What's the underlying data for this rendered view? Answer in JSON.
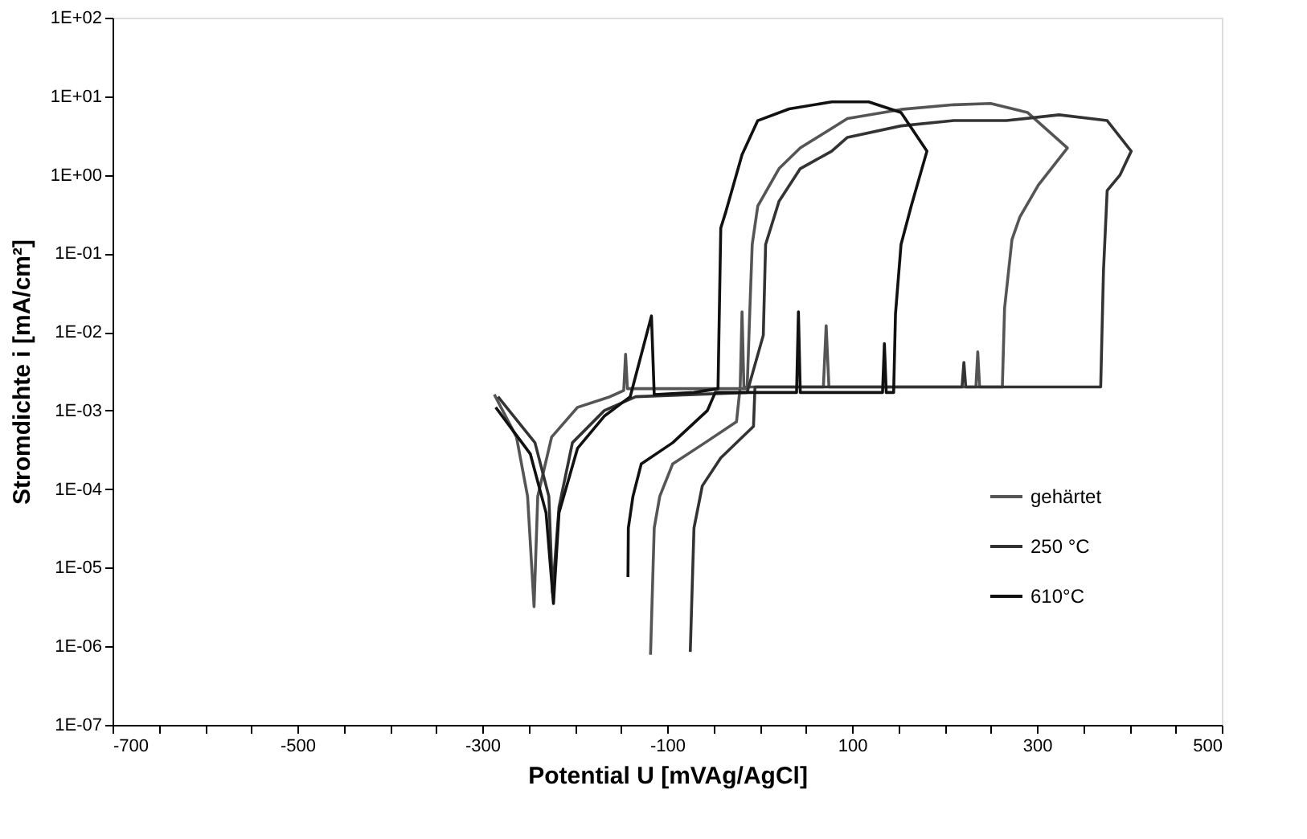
{
  "chart_data": {
    "type": "line",
    "xlabel": "Potential U [mVAg/AgCl]",
    "ylabel": "Stromdichte i [mA/cm²]",
    "log": "y",
    "grid": false,
    "legend": "bottom right",
    "marker": "none",
    "line_style": "solid",
    "xlim": [
      -700,
      500
    ],
    "xticks": [
      {
        "value": -700,
        "label": "-700"
      },
      {
        "value": -650,
        "label": null
      },
      {
        "value": -600,
        "label": null
      },
      {
        "value": -550,
        "label": null
      },
      {
        "value": -500,
        "label": "-500"
      },
      {
        "value": -450,
        "label": null
      },
      {
        "value": -400,
        "label": null
      },
      {
        "value": -350,
        "label": null
      },
      {
        "value": -300,
        "label": "-300"
      },
      {
        "value": -250,
        "label": null
      },
      {
        "value": -200,
        "label": null
      },
      {
        "value": -150,
        "label": null
      },
      {
        "value": -100,
        "label": "-100"
      },
      {
        "value": -50,
        "label": null
      },
      {
        "value": 0,
        "label": null
      },
      {
        "value": 50,
        "label": null
      },
      {
        "value": 100,
        "label": "100"
      },
      {
        "value": 150,
        "label": null
      },
      {
        "value": 200,
        "label": null
      },
      {
        "value": 250,
        "label": null
      },
      {
        "value": 300,
        "label": "300"
      },
      {
        "value": 350,
        "label": null
      },
      {
        "value": 400,
        "label": null
      },
      {
        "value": 450,
        "label": null
      },
      {
        "value": 500,
        "label": "500"
      }
    ],
    "ylim": [
      1e-07,
      100
    ],
    "yticks": [
      {
        "value": 1e-07,
        "label": "1E-07"
      },
      {
        "value": 1e-06,
        "label": "1E-06"
      },
      {
        "value": 1e-05,
        "label": "1E-05"
      },
      {
        "value": 0.0001,
        "label": "1E-04"
      },
      {
        "value": 0.001,
        "label": "1E-03"
      },
      {
        "value": 0.01,
        "label": "1E-02"
      },
      {
        "value": 0.1,
        "label": "1E-01"
      },
      {
        "value": 1,
        "label": "1E+00"
      },
      {
        "value": 10,
        "label": "1E+01"
      },
      {
        "value": 100,
        "label": "1E+02"
      }
    ],
    "series": [
      {
        "name": "gehärtet",
        "color": "#555555",
        "x": [
          -287,
          -263,
          -251,
          -244,
          -240,
          -225,
          -197,
          -162,
          -147,
          -145,
          -143,
          -13.5,
          -10.7,
          -8,
          -2,
          21,
          44,
          78,
          95,
          153,
          210,
          250,
          290,
          333,
          301.5,
          281.5,
          273,
          265,
          262.6,
          238,
          236,
          234,
          75,
          72,
          69,
          -17,
          -19,
          -21,
          -25,
          -59,
          -94,
          -108,
          -114,
          -118
        ],
        "values": [
          0.0016,
          0.00046,
          8.1e-05,
          3.2e-06,
          8.1e-05,
          0.00046,
          0.0011,
          0.0015,
          0.0018,
          0.0052,
          0.0019,
          0.0019,
          0.017,
          0.13,
          0.4,
          1.2,
          2.2,
          3.9,
          5.2,
          6.8,
          7.8,
          8.1,
          6.2,
          2.2,
          0.74,
          0.29,
          0.15,
          0.02,
          0.002,
          0.002,
          0.0056,
          0.002,
          0.002,
          0.012,
          0.002,
          0.002,
          0.018,
          0.002,
          0.00072,
          0.00039,
          0.00021,
          8.1e-05,
          3.2e-05,
          7.8e-07
        ]
      },
      {
        "name": "250 °C",
        "color": "#333333",
        "x": [
          -283,
          -243,
          -228,
          -224,
          -217,
          -202.5,
          -168,
          -134,
          -13.5,
          4,
          6.5,
          21,
          44,
          78,
          95,
          153,
          210,
          267,
          324,
          376,
          402,
          390,
          376,
          372,
          369,
          223,
          221,
          219,
          -5,
          -6.6,
          -42,
          -62,
          -71,
          -75
        ],
        "values": [
          0.0015,
          0.00039,
          8.1e-05,
          4.8e-06,
          5.9e-05,
          0.00039,
          0.001,
          0.0015,
          0.0017,
          0.0091,
          0.13,
          0.46,
          1.2,
          2.0,
          3.0,
          4.2,
          4.9,
          4.9,
          5.8,
          4.9,
          2.0,
          1.0,
          0.63,
          0.06,
          0.002,
          0.002,
          0.0041,
          0.002,
          0.002,
          0.00063,
          0.00025,
          0.00011,
          3.2e-05,
          8.5e-07
        ]
      },
      {
        "name": "610°C",
        "color": "#111111",
        "x": [
          -285.5,
          -248,
          -231,
          -223,
          -217,
          -197,
          -168,
          -140,
          -117,
          -114,
          -71,
          -45,
          -42,
          -36.5,
          -19,
          -2,
          32,
          78,
          118,
          153,
          181,
          164,
          153,
          147,
          145,
          137,
          135,
          133,
          44,
          42,
          40,
          -48,
          -56.5,
          -94,
          -128,
          -137,
          -142,
          -142.4
        ],
        "values": [
          0.0011,
          0.00028,
          5e-05,
          3.5e-06,
          5e-05,
          0.00033,
          0.00085,
          0.0015,
          0.016,
          0.0016,
          0.0017,
          0.0019,
          0.21,
          0.34,
          1.8,
          4.9,
          6.9,
          8.5,
          8.5,
          6.2,
          2.0,
          0.4,
          0.13,
          0.017,
          0.0017,
          0.0017,
          0.0071,
          0.0017,
          0.0017,
          0.018,
          0.0017,
          0.0017,
          0.001,
          0.00039,
          0.00021,
          8.1e-05,
          3.2e-05,
          7.6e-06
        ]
      }
    ]
  }
}
